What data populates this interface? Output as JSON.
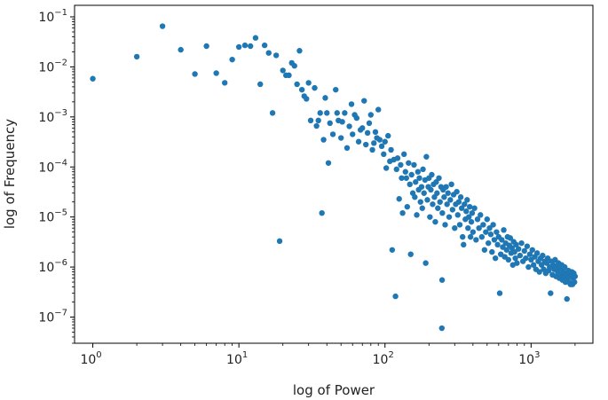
{
  "chart_data": {
    "type": "scatter",
    "title": "",
    "xlabel": "log of Power",
    "ylabel": "log of Frequency",
    "xscale": "log",
    "yscale": "log",
    "xlim": [
      0.75,
      2650
    ],
    "ylim": [
      3e-08,
      0.17
    ],
    "grid": false,
    "legend": "none",
    "marker_color": "#1f77b4",
    "x_ticks": [
      {
        "value": 1,
        "base": "10",
        "exp": "0"
      },
      {
        "value": 10,
        "base": "10",
        "exp": "1"
      },
      {
        "value": 100,
        "base": "10",
        "exp": "2"
      },
      {
        "value": 1000,
        "base": "10",
        "exp": "3"
      }
    ],
    "y_ticks": [
      {
        "value": 1e-07,
        "base": "10",
        "exp": "−7"
      },
      {
        "value": 1e-06,
        "base": "10",
        "exp": "−6"
      },
      {
        "value": 1e-05,
        "base": "10",
        "exp": "−5"
      },
      {
        "value": 0.0001,
        "base": "10",
        "exp": "−4"
      },
      {
        "value": 0.001,
        "base": "10",
        "exp": "−3"
      },
      {
        "value": 0.01,
        "base": "10",
        "exp": "−2"
      },
      {
        "value": 0.1,
        "base": "10",
        "exp": "−1"
      }
    ],
    "points": [
      [
        1,
        0.0058
      ],
      [
        2,
        0.016
      ],
      [
        3,
        0.065
      ],
      [
        4,
        0.022
      ],
      [
        5,
        0.0072
      ],
      [
        6,
        0.026
      ],
      [
        7,
        0.0075
      ],
      [
        8,
        0.0048
      ],
      [
        9,
        0.014
      ],
      [
        10,
        0.025
      ],
      [
        11,
        0.027
      ],
      [
        12,
        0.026
      ],
      [
        13,
        0.038
      ],
      [
        14,
        0.0045
      ],
      [
        15,
        0.027
      ],
      [
        16,
        0.019
      ],
      [
        17,
        0.0012
      ],
      [
        18,
        0.017
      ],
      [
        19,
        3.3e-06
      ],
      [
        20,
        0.0085
      ],
      [
        21,
        0.0068
      ],
      [
        22,
        0.0068
      ],
      [
        23,
        0.012
      ],
      [
        24,
        0.0105
      ],
      [
        25,
        0.0045
      ],
      [
        26,
        0.021
      ],
      [
        27,
        0.0035
      ],
      [
        28,
        0.0026
      ],
      [
        29,
        0.0023
      ],
      [
        30,
        0.0048
      ],
      [
        31,
        0.00085
      ],
      [
        33,
        0.0038
      ],
      [
        34,
        0.00066
      ],
      [
        35,
        0.00085
      ],
      [
        36,
        0.0012
      ],
      [
        37,
        1.2e-05
      ],
      [
        38,
        0.00035
      ],
      [
        39,
        0.0024
      ],
      [
        40,
        0.0012
      ],
      [
        41,
        0.00012
      ],
      [
        42,
        0.00075
      ],
      [
        44,
        0.00045
      ],
      [
        46,
        0.0035
      ],
      [
        47,
        0.0012
      ],
      [
        48,
        0.00085
      ],
      [
        50,
        0.00038
      ],
      [
        51,
        0.0008
      ],
      [
        53,
        0.0012
      ],
      [
        55,
        0.00024
      ],
      [
        57,
        0.00065
      ],
      [
        59,
        0.0018
      ],
      [
        60,
        0.00045
      ],
      [
        62,
        0.0011
      ],
      [
        64,
        0.00095
      ],
      [
        66,
        0.00032
      ],
      [
        68,
        0.00055
      ],
      [
        70,
        0.0006
      ],
      [
        72,
        0.0021
      ],
      [
        74,
        0.00028
      ],
      [
        76,
        0.00048
      ],
      [
        78,
        0.00075
      ],
      [
        80,
        0.0011
      ],
      [
        82,
        0.00022
      ],
      [
        84,
        0.0003
      ],
      [
        86,
        0.0005
      ],
      [
        88,
        0.00038
      ],
      [
        90,
        0.0014
      ],
      [
        92,
        0.00035
      ],
      [
        95,
        0.00026
      ],
      [
        98,
        0.00018
      ],
      [
        100,
        0.00032
      ],
      [
        102,
        9.5e-05
      ],
      [
        105,
        0.00042
      ],
      [
        108,
        0.00013
      ],
      [
        110,
        0.00022
      ],
      [
        112,
        2.2e-06
      ],
      [
        115,
        0.00014
      ],
      [
        118,
        2.6e-07
      ],
      [
        120,
        9e-05
      ],
      [
        122,
        0.00015
      ],
      [
        125,
        2.3e-05
      ],
      [
        128,
        0.00011
      ],
      [
        130,
        6e-05
      ],
      [
        132,
        1.2e-05
      ],
      [
        135,
        0.00018
      ],
      [
        138,
        8e-05
      ],
      [
        140,
        6e-05
      ],
      [
        142,
        1.6e-05
      ],
      [
        145,
        0.00012
      ],
      [
        148,
        4.5e-05
      ],
      [
        150,
        1.8e-06
      ],
      [
        152,
        7e-05
      ],
      [
        155,
        3e-05
      ],
      [
        158,
        0.00011
      ],
      [
        160,
        2.5e-05
      ],
      [
        162,
        5e-05
      ],
      [
        165,
        1.1e-05
      ],
      [
        168,
        8e-05
      ],
      [
        170,
        3.5e-05
      ],
      [
        172,
        6e-05
      ],
      [
        175,
        2e-05
      ],
      [
        178,
        4e-05
      ],
      [
        180,
        1.5e-05
      ],
      [
        182,
        9e-05
      ],
      [
        185,
        3e-05
      ],
      [
        188,
        5.5e-05
      ],
      [
        190,
        1.2e-06
      ],
      [
        192,
        0.00016
      ],
      [
        195,
        2.2e-05
      ],
      [
        198,
        4e-05
      ],
      [
        200,
        6e-05
      ],
      [
        203,
        1e-05
      ],
      [
        206,
        3.5e-05
      ],
      [
        209,
        7e-05
      ],
      [
        212,
        1.8e-05
      ],
      [
        215,
        4.5e-05
      ],
      [
        218,
        2.5e-05
      ],
      [
        221,
        8e-06
      ],
      [
        224,
        5e-05
      ],
      [
        227,
        3e-05
      ],
      [
        230,
        1.5e-05
      ],
      [
        234,
        6e-05
      ],
      [
        238,
        2e-05
      ],
      [
        242,
        4e-05
      ],
      [
        245,
        6e-08
      ],
      [
        246,
        5.5e-07
      ],
      [
        247,
        1.2e-05
      ],
      [
        250,
        3.5e-05
      ],
      [
        254,
        2.5e-05
      ],
      [
        258,
        7e-06
      ],
      [
        262,
        4e-05
      ],
      [
        266,
        1.8e-05
      ],
      [
        270,
        3e-05
      ],
      [
        275,
        1e-05
      ],
      [
        280,
        2.2e-05
      ],
      [
        285,
        4.5e-05
      ],
      [
        290,
        1.4e-05
      ],
      [
        295,
        2.8e-05
      ],
      [
        300,
        6e-06
      ],
      [
        305,
        1.8e-05
      ],
      [
        310,
        3.2e-05
      ],
      [
        315,
        1.1e-05
      ],
      [
        320,
        2e-05
      ],
      [
        325,
        7e-06
      ],
      [
        330,
        2.5e-05
      ],
      [
        335,
        1.5e-05
      ],
      [
        340,
        4e-06
      ],
      [
        345,
        2.8e-06
      ],
      [
        350,
        1.8e-05
      ],
      [
        355,
        9e-06
      ],
      [
        360,
        1.3e-05
      ],
      [
        365,
        2.2e-05
      ],
      [
        370,
        6e-06
      ],
      [
        375,
        1e-05
      ],
      [
        380,
        1.6e-05
      ],
      [
        385,
        4e-06
      ],
      [
        390,
        8e-06
      ],
      [
        395,
        1.2e-05
      ],
      [
        400,
        5e-06
      ],
      [
        410,
        1.5e-05
      ],
      [
        420,
        3.5e-06
      ],
      [
        430,
        9e-06
      ],
      [
        440,
        6e-06
      ],
      [
        450,
        1.1e-05
      ],
      [
        460,
        4e-06
      ],
      [
        470,
        7e-06
      ],
      [
        480,
        2.2e-06
      ],
      [
        490,
        5e-06
      ],
      [
        500,
        9e-06
      ],
      [
        510,
        3e-06
      ],
      [
        520,
        6e-06
      ],
      [
        530,
        4.5e-06
      ],
      [
        540,
        2e-06
      ],
      [
        550,
        7e-06
      ],
      [
        560,
        3.5e-06
      ],
      [
        570,
        1.5e-06
      ],
      [
        580,
        5e-06
      ],
      [
        590,
        2.8e-06
      ],
      [
        600,
        4e-06
      ],
      [
        610,
        3e-07
      ],
      [
        620,
        1.8e-06
      ],
      [
        630,
        3.5e-06
      ],
      [
        640,
        2.5e-06
      ],
      [
        650,
        5.5e-06
      ],
      [
        660,
        1.6e-06
      ],
      [
        670,
        3e-06
      ],
      [
        680,
        2.2e-06
      ],
      [
        690,
        4e-06
      ],
      [
        700,
        1.4e-06
      ],
      [
        710,
        2.7e-06
      ],
      [
        720,
        3.8e-06
      ],
      [
        730,
        1.9e-06
      ],
      [
        740,
        2.4e-06
      ],
      [
        750,
        1.1e-06
      ],
      [
        760,
        3.2e-06
      ],
      [
        770,
        2e-06
      ],
      [
        780,
        1.5e-06
      ],
      [
        790,
        2.8e-06
      ],
      [
        800,
        1.2e-06
      ],
      [
        820,
        2.3e-06
      ],
      [
        840,
        1.7e-06
      ],
      [
        860,
        3e-06
      ],
      [
        880,
        1.3e-06
      ],
      [
        900,
        2.1e-06
      ],
      [
        920,
        1.5e-06
      ],
      [
        940,
        2.6e-06
      ],
      [
        960,
        1e-06
      ],
      [
        980,
        1.8e-06
      ],
      [
        1000,
        1.4e-06
      ],
      [
        1020,
        2.2e-06
      ],
      [
        1040,
        1.1e-06
      ],
      [
        1060,
        1.6e-06
      ],
      [
        1080,
        9e-07
      ],
      [
        1100,
        1.9e-06
      ],
      [
        1120,
        1.3e-06
      ],
      [
        1140,
        8e-07
      ],
      [
        1160,
        1.5e-06
      ],
      [
        1180,
        1.1e-06
      ],
      [
        1200,
        1.7e-06
      ],
      [
        1220,
        9e-07
      ],
      [
        1240,
        1.3e-06
      ],
      [
        1260,
        7.5e-07
      ],
      [
        1280,
        1.2e-06
      ],
      [
        1300,
        1.5e-06
      ],
      [
        1320,
        8.5e-07
      ],
      [
        1340,
        1e-06
      ],
      [
        1360,
        3e-07
      ],
      [
        1380,
        1.3e-06
      ],
      [
        1400,
        7e-07
      ],
      [
        1420,
        1.1e-06
      ],
      [
        1440,
        9e-07
      ],
      [
        1460,
        1.4e-06
      ],
      [
        1480,
        6.5e-07
      ],
      [
        1500,
        1e-06
      ],
      [
        1520,
        8e-07
      ],
      [
        1540,
        1.2e-06
      ],
      [
        1560,
        6e-07
      ],
      [
        1580,
        9.5e-07
      ],
      [
        1600,
        7e-07
      ],
      [
        1620,
        1.1e-06
      ],
      [
        1640,
        5.5e-07
      ],
      [
        1660,
        8e-07
      ],
      [
        1680,
        6.5e-07
      ],
      [
        1700,
        1e-06
      ],
      [
        1720,
        5e-07
      ],
      [
        1740,
        7.5e-07
      ],
      [
        1760,
        2.3e-07
      ],
      [
        1780,
        6e-07
      ],
      [
        1800,
        8.5e-07
      ],
      [
        1820,
        5e-07
      ],
      [
        1840,
        7e-07
      ],
      [
        1860,
        4.5e-07
      ],
      [
        1880,
        6.5e-07
      ],
      [
        1900,
        8e-07
      ],
      [
        1920,
        4.5e-07
      ],
      [
        1940,
        6e-07
      ],
      [
        1960,
        7.5e-07
      ],
      [
        1980,
        5e-07
      ],
      [
        2000,
        6.5e-07
      ]
    ]
  }
}
